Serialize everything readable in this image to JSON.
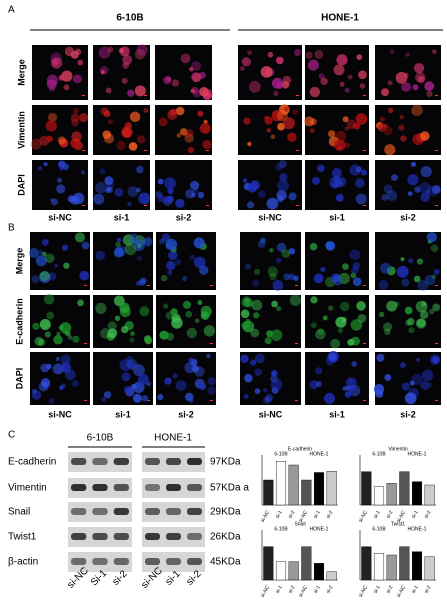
{
  "panel_a": {
    "label": "A",
    "groups": [
      "6-10B",
      "HONE-1"
    ],
    "rows": [
      "Merge",
      "Vimentin",
      "DAPI"
    ],
    "columns": [
      "si-NC",
      "si-1",
      "si-2",
      "si-NC",
      "si-1",
      "si-2"
    ]
  },
  "panel_b": {
    "label": "B",
    "rows": [
      "Merge",
      "E-cadherin",
      "DAPI"
    ],
    "columns": [
      "si-NC",
      "si-1",
      "si-2",
      "si-NC",
      "si-1",
      "si-2"
    ]
  },
  "panel_c": {
    "label": "C",
    "groups": [
      "6-10B",
      "HONE-1"
    ],
    "proteins": [
      "E-cadherin",
      "Vimentin",
      "Snail",
      "Twist1",
      "β-actin"
    ],
    "sizes": [
      "97KDa",
      "57KDa a",
      "29KDa",
      "26KDa",
      "45KDa"
    ],
    "lanes": [
      "si-NC",
      "Si-1",
      "si-2",
      "si-NC",
      "si-1",
      "si-2"
    ],
    "charts": [
      {
        "title": "E-cadherin",
        "groups": [
          "6-10B",
          "HONE-1"
        ],
        "categories": [
          "si-NC",
          "si-1",
          "si-2",
          "si-NC",
          "si-1",
          "si-2"
        ],
        "values": [
          1.0,
          1.75,
          1.6,
          1.0,
          1.3,
          1.35
        ],
        "ylim": [
          0,
          2
        ]
      },
      {
        "title": "Vimentin",
        "groups": [
          "6-10B",
          "HONE-1"
        ],
        "categories": [
          "si-NC",
          "si-1",
          "si-2",
          "si-NC",
          "si-1",
          "si-2"
        ],
        "values": [
          1.0,
          0.55,
          0.65,
          1.0,
          0.7,
          0.6
        ],
        "ylim": [
          0,
          1.5
        ]
      },
      {
        "title": "Snail",
        "groups": [
          "6-10B",
          "HONE-1"
        ],
        "categories": [
          "si-NC",
          "si-1",
          "si-2",
          "si-NC",
          "si-1",
          "si-2"
        ],
        "values": [
          1.0,
          0.55,
          0.55,
          1.0,
          0.5,
          0.25
        ],
        "ylim": [
          0,
          1.5
        ]
      },
      {
        "title": "Twist1",
        "groups": [
          "6-10B",
          "HONE-1"
        ],
        "categories": [
          "si-NC",
          "si-1",
          "si-2",
          "si-NC",
          "si-1",
          "si-2"
        ],
        "values": [
          1.0,
          0.8,
          0.75,
          1.0,
          0.85,
          0.7
        ],
        "ylim": [
          0,
          1.5
        ]
      }
    ]
  }
}
